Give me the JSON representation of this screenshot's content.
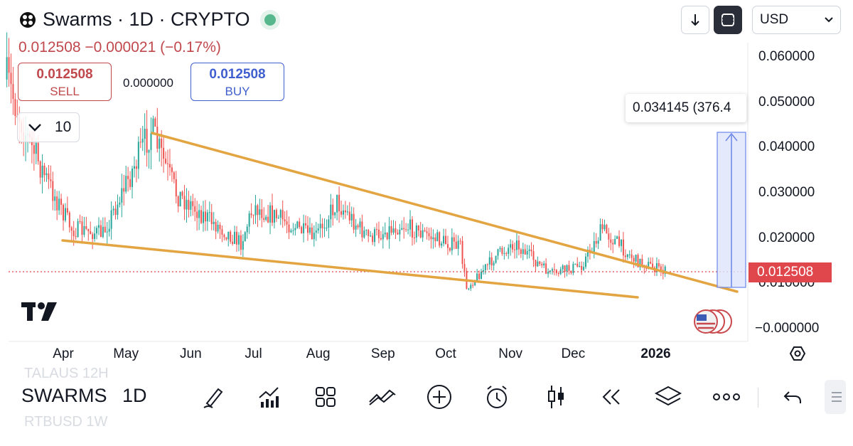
{
  "header": {
    "symbol_title": "Swarms · 1D · CRYPTO",
    "price_change": "0.012508 −0.000021 (−0.17%)",
    "currency": "USD"
  },
  "trade": {
    "sell_value": "0.012508",
    "sell_label": "SELL",
    "spread": "0.000000",
    "buy_value": "0.012508",
    "buy_label": "BUY"
  },
  "interval_control": {
    "value": "10"
  },
  "measure_label": "0.034145 (376.4",
  "current_price_tag": "0.012508",
  "bottom": {
    "symbol": "SWARMS",
    "timeframe": "1D",
    "ghost_top": "TALAUS    12H",
    "ghost_bottom": "RTBUSD    1W"
  },
  "tools": [
    "pencil-icon",
    "chart-stats-icon",
    "layout-grid-icon",
    "trend-lines-icon",
    "plus-circle-icon",
    "alarm-clock-icon",
    "candles-icon",
    "rewind-icon",
    "layers-icon",
    "more-icon"
  ],
  "colors": {
    "up": "#26a69a",
    "down": "#ef5350",
    "trendline": "#e3a542",
    "price_line": "#e0474c",
    "measure_fill": "#dde4fb",
    "measure_stroke": "#6b86e8"
  },
  "chart_data": {
    "type": "candlestick",
    "title": "Swarms · 1D · CRYPTO",
    "y_ticks": [
      "0.060000",
      "0.050000",
      "0.040000",
      "0.030000",
      "0.020000",
      "0.010000",
      "−0.000000"
    ],
    "x_ticks": [
      "Apr",
      "May",
      "Jun",
      "Jul",
      "Aug",
      "Sep",
      "Oct",
      "Nov",
      "Dec",
      "2026"
    ],
    "ylim": [
      -0.0002,
      0.062
    ],
    "last_price": 0.012508,
    "approx_close_path": [
      {
        "date": "2025-03-05",
        "close": 0.055
      },
      {
        "date": "2025-03-15",
        "close": 0.042
      },
      {
        "date": "2025-03-25",
        "close": 0.032
      },
      {
        "date": "2025-04-05",
        "close": 0.022
      },
      {
        "date": "2025-04-20",
        "close": 0.021
      },
      {
        "date": "2025-05-01",
        "close": 0.032
      },
      {
        "date": "2025-05-13",
        "close": 0.044
      },
      {
        "date": "2025-05-25",
        "close": 0.03
      },
      {
        "date": "2025-06-10",
        "close": 0.024
      },
      {
        "date": "2025-06-25",
        "close": 0.019
      },
      {
        "date": "2025-07-01",
        "close": 0.027
      },
      {
        "date": "2025-07-15",
        "close": 0.024
      },
      {
        "date": "2025-07-30",
        "close": 0.02
      },
      {
        "date": "2025-08-10",
        "close": 0.028
      },
      {
        "date": "2025-08-25",
        "close": 0.02
      },
      {
        "date": "2025-09-10",
        "close": 0.023
      },
      {
        "date": "2025-09-25",
        "close": 0.02
      },
      {
        "date": "2025-10-08",
        "close": 0.018
      },
      {
        "date": "2025-10-11",
        "close": 0.009
      },
      {
        "date": "2025-10-25",
        "close": 0.016
      },
      {
        "date": "2025-11-03",
        "close": 0.019
      },
      {
        "date": "2025-11-20",
        "close": 0.012
      },
      {
        "date": "2025-12-05",
        "close": 0.014
      },
      {
        "date": "2025-12-15",
        "close": 0.022
      },
      {
        "date": "2025-12-31",
        "close": 0.015
      },
      {
        "date": "2026-01-15",
        "close": 0.0125
      }
    ],
    "trendlines": [
      {
        "name": "upper",
        "from": {
          "date": "2025-05-14",
          "price": 0.0425
        },
        "to": {
          "date": "2026-01-18",
          "price": 0.0085
        }
      },
      {
        "name": "lower",
        "from": {
          "date": "2025-03-30",
          "price": 0.019
        },
        "to": {
          "date": "2025-12-30",
          "price": 0.006
        }
      }
    ],
    "measure": {
      "from_price": 0.009,
      "to_price": 0.043,
      "change": "0.034145"
    }
  }
}
